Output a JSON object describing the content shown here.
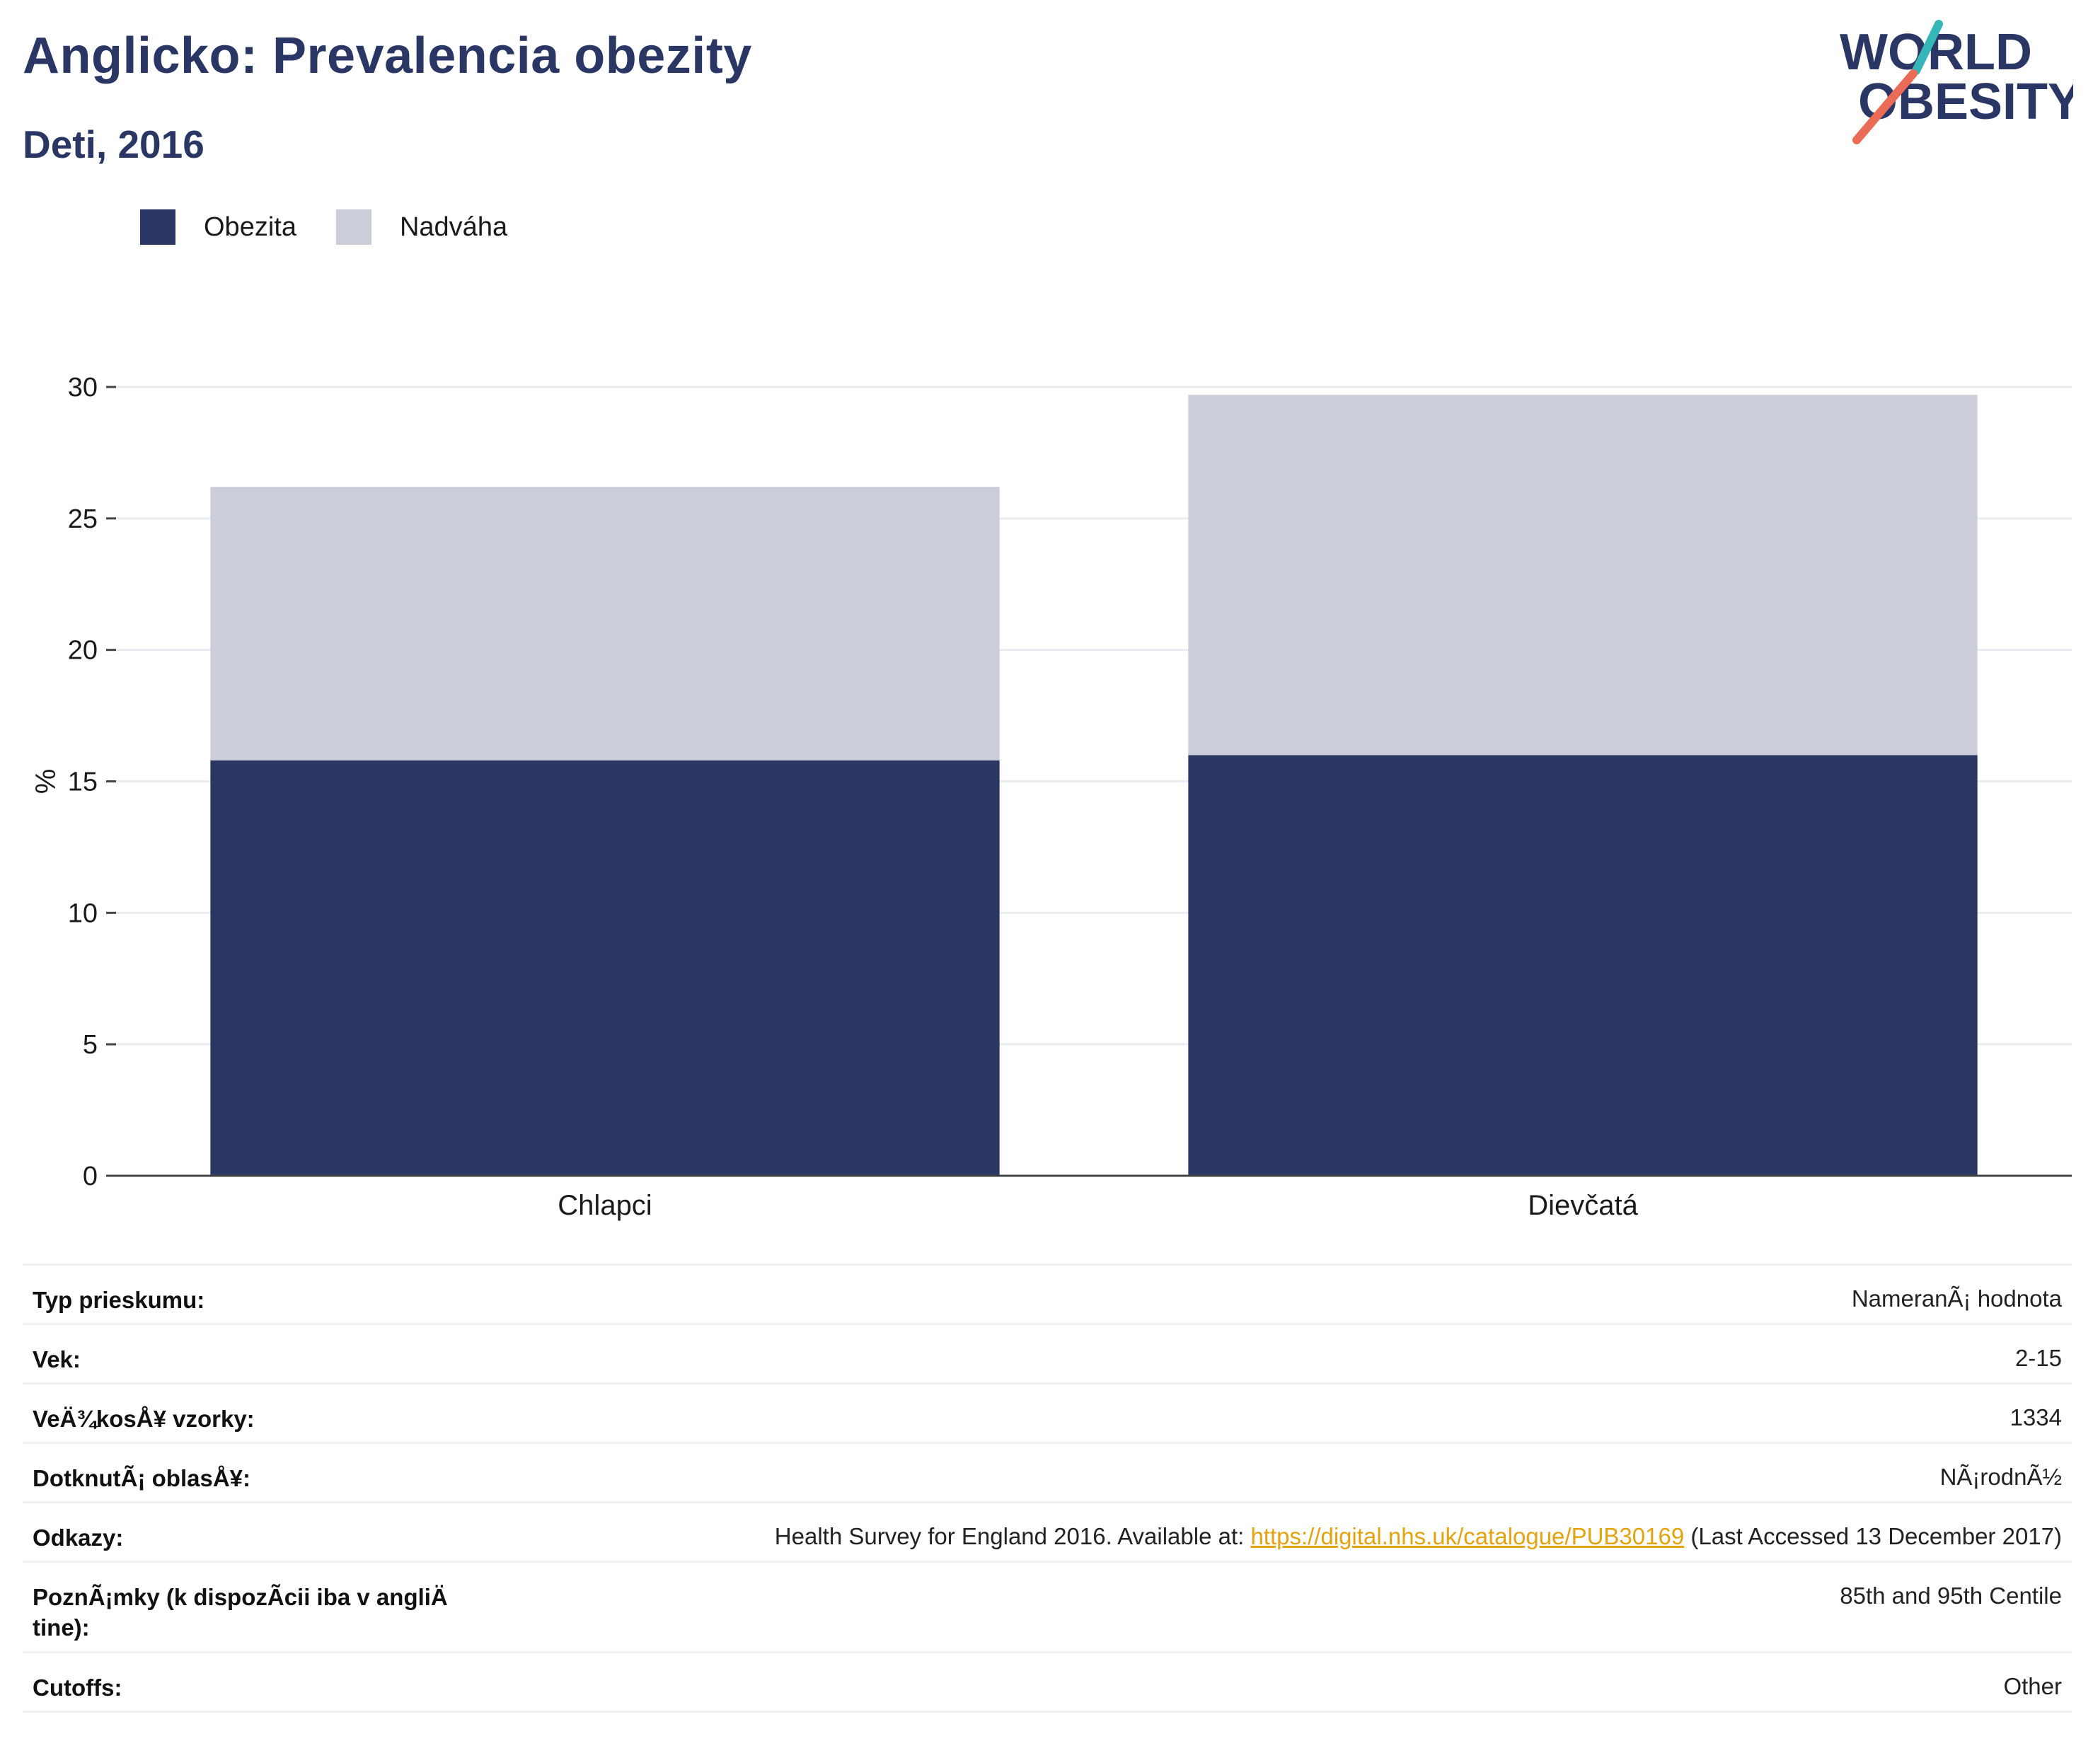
{
  "header": {
    "title": "Anglicko: Prevalencia obezity",
    "subtitle": "Deti, 2016"
  },
  "logo": {
    "line1": "WORLD",
    "line2": "OBESITY"
  },
  "legend": [
    {
      "label": "Obezita",
      "color": "#2a3663"
    },
    {
      "label": "Nadváha",
      "color": "#cbcdd8"
    }
  ],
  "chart_data": {
    "type": "bar",
    "stacked": true,
    "categories": [
      "Chlapci",
      "Dievčatá"
    ],
    "series": [
      {
        "name": "Obezita",
        "color": "#2a3663",
        "values": [
          15.8,
          16.0
        ]
      },
      {
        "name": "Nadváha",
        "color": "#cbcdd8",
        "values": [
          10.4,
          13.7
        ]
      }
    ],
    "ylabel": "%",
    "xlabel": "",
    "ylim": [
      0,
      30
    ],
    "yticks": [
      0,
      5,
      10,
      15,
      20,
      25,
      30
    ],
    "grid": true,
    "legend_position": "top-left"
  },
  "info": {
    "survey_type": {
      "label": "Typ prieskumu:",
      "value": "NameranÃ¡ hodnota"
    },
    "age": {
      "label": "Vek:",
      "value": "2-15"
    },
    "sample_size": {
      "label": "VeÄ¾kosÅ¥ vzorky:",
      "value": "1334"
    },
    "area": {
      "label": "DotknutÃ¡ oblasÅ¥:",
      "value": "NÃ¡rodnÃ½"
    },
    "references": {
      "label": "Odkazy:",
      "prefix": "Health Survey for England 2016. Available at: ",
      "link": "https://digital.nhs.uk/catalogue/PUB30169",
      "suffix": " (Last Accessed 13 December 2017)"
    },
    "notes": {
      "label_line1": "PoznÃ¡mky (k dispozÃ­cii iba v angliÄ",
      "label_line2": "tine):",
      "value": "85th and 95th Centile"
    },
    "cutoffs": {
      "label": "Cutoffs:",
      "value": "Other"
    }
  }
}
